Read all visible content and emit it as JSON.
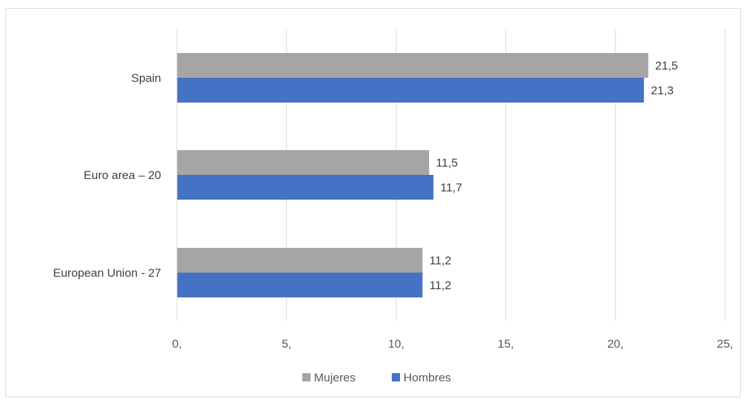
{
  "chart_data": {
    "type": "bar",
    "orientation": "horizontal",
    "categories": [
      "Spain",
      "Euro area – 20",
      "European Union - 27"
    ],
    "series": [
      {
        "name": "Mujeres",
        "color": "#a5a5a5",
        "values": [
          21.5,
          11.5,
          11.2
        ],
        "labels": [
          "21,5",
          "11,5",
          "11,2"
        ]
      },
      {
        "name": "Hombres",
        "color": "#4472c4",
        "values": [
          21.3,
          11.7,
          11.2
        ],
        "labels": [
          "21,3",
          "11,7",
          "11,2"
        ]
      }
    ],
    "xlim": [
      0,
      25
    ],
    "xticks": [
      0,
      5,
      10,
      15,
      20,
      25
    ],
    "xtick_labels": [
      "0,",
      "5,",
      "10,",
      "15,",
      "20,",
      "25,"
    ],
    "grid": true,
    "legend_position": "bottom",
    "title": "",
    "xlabel": "",
    "ylabel": ""
  }
}
